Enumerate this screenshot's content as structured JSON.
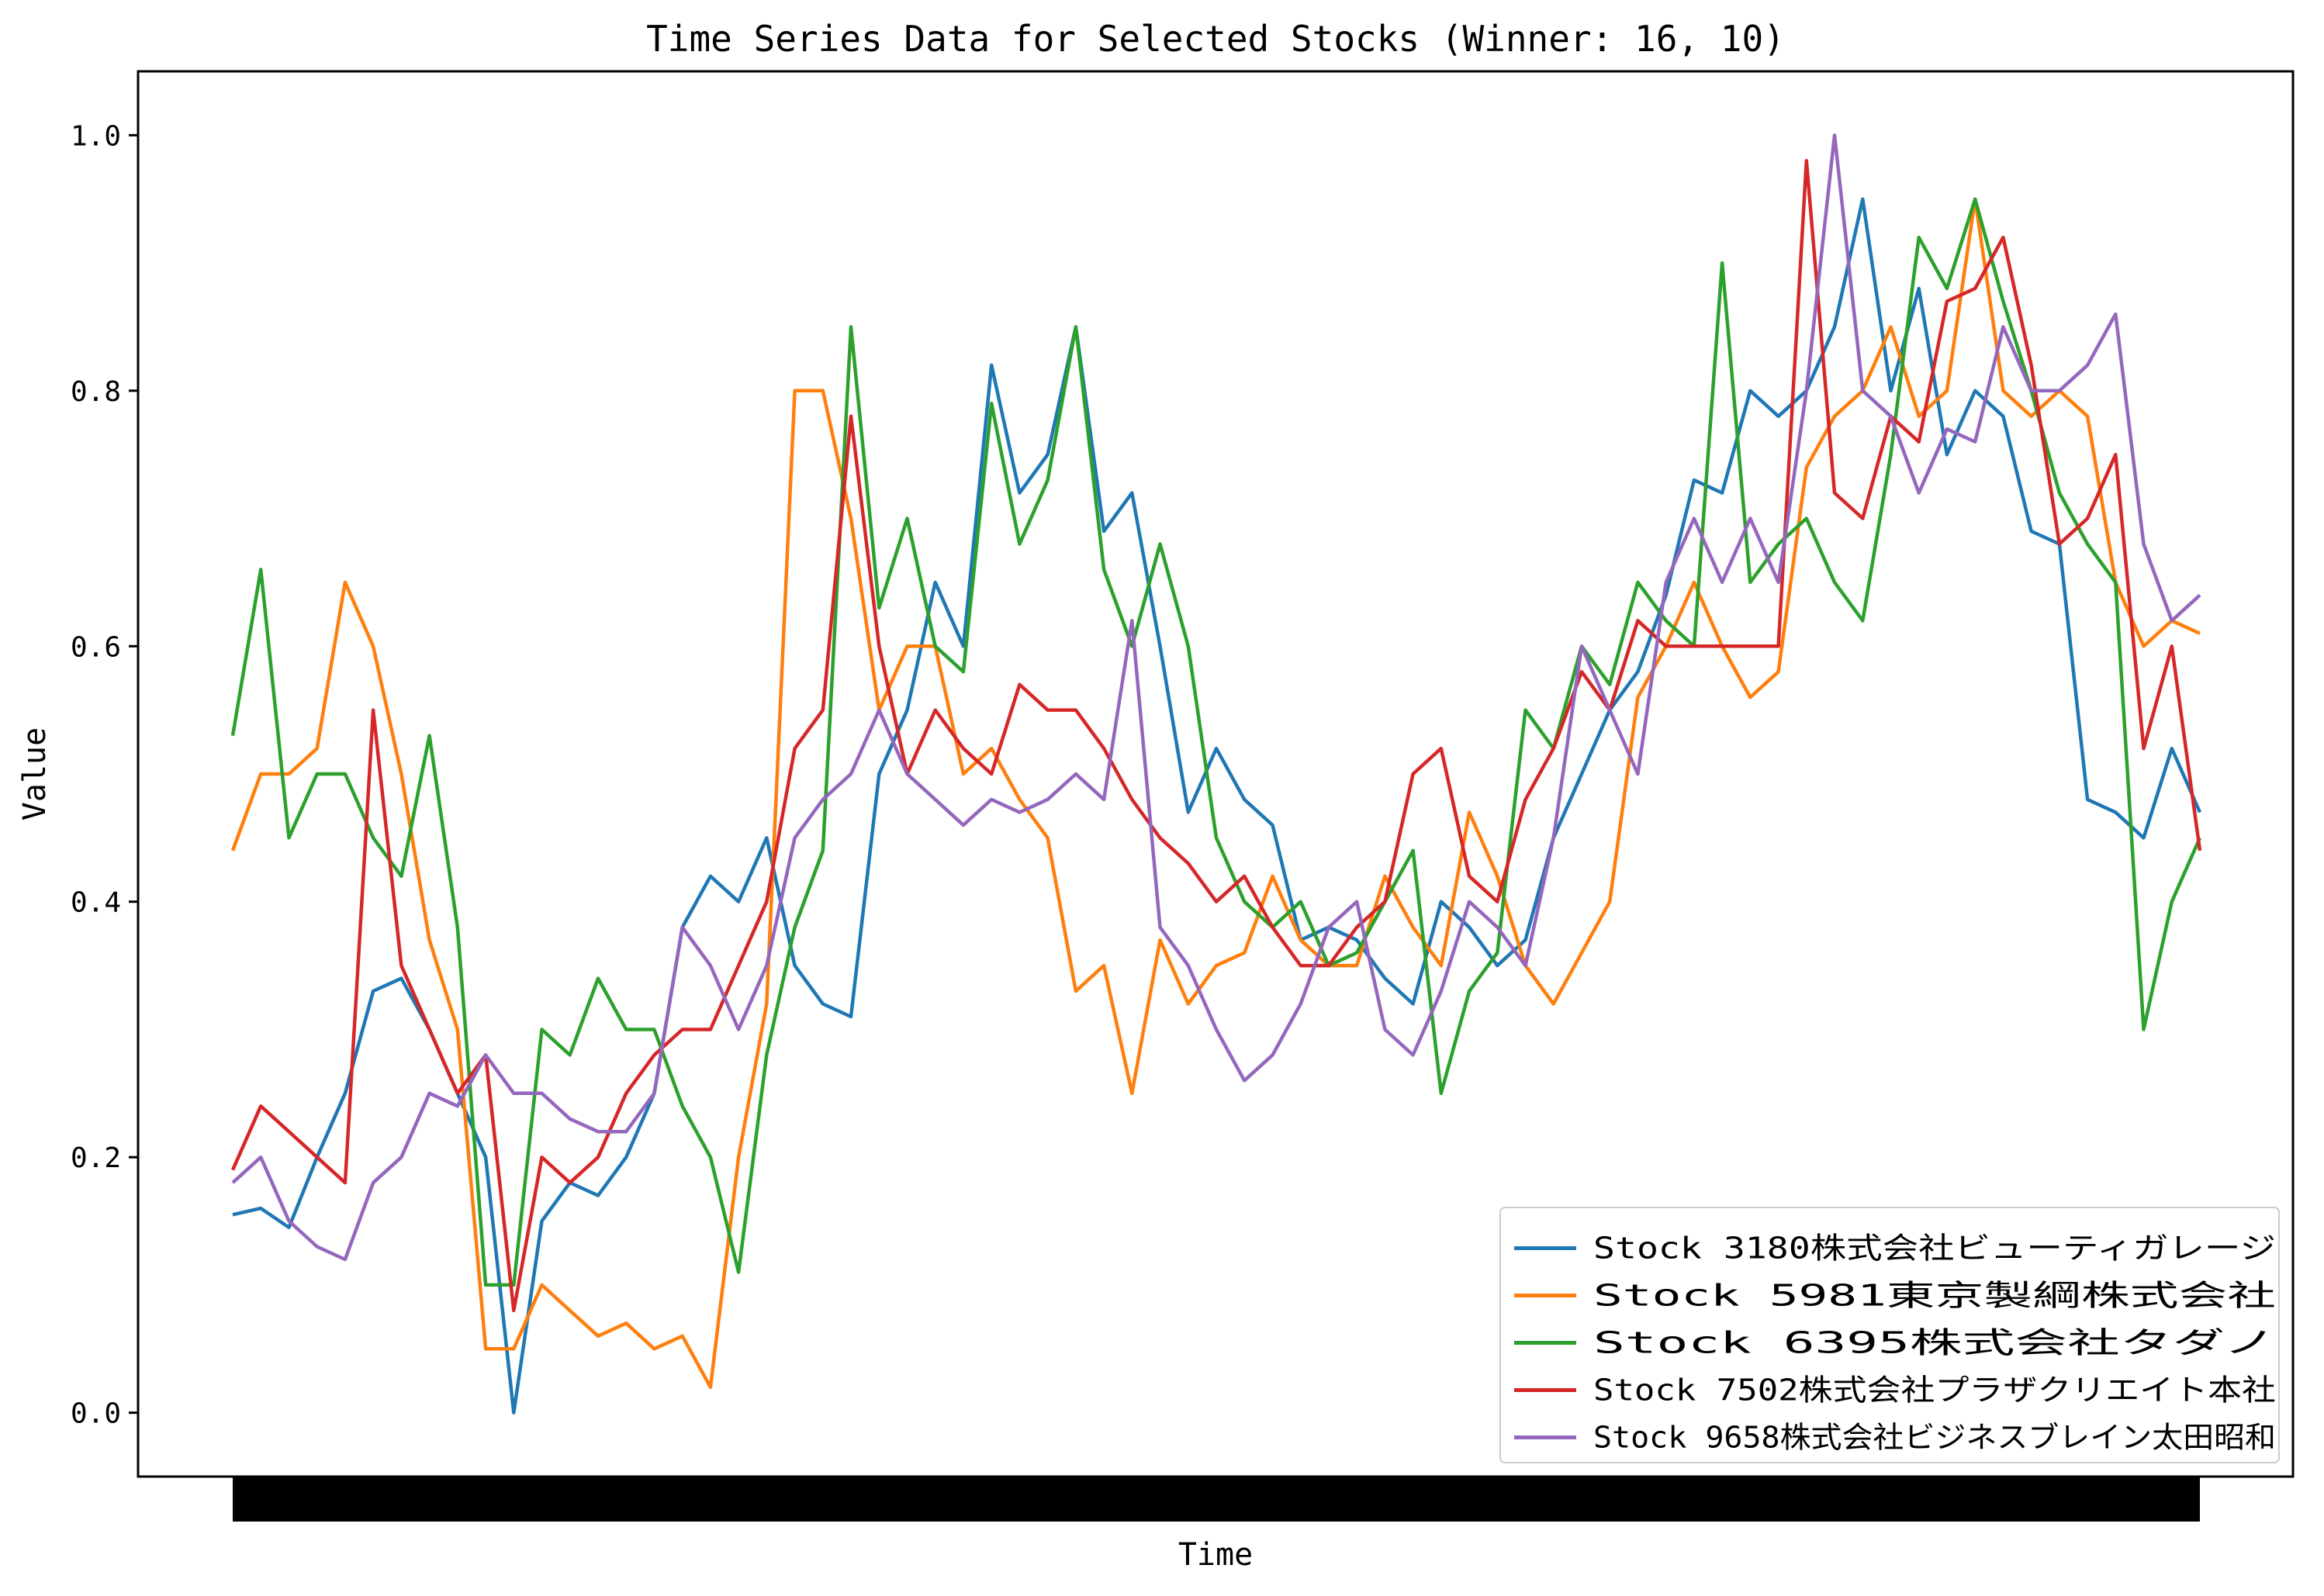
{
  "chart_data": {
    "type": "line",
    "title": "Time Series Data for Selected Stocks (Winner: 16, 10)",
    "xlabel": "Time",
    "ylabel": "Value",
    "ylim": [
      -0.05,
      1.05
    ],
    "yticks": [
      0.0,
      0.2,
      0.4,
      0.6,
      0.8,
      1.0
    ],
    "ytick_labels": [
      "0.0",
      "0.2",
      "0.4",
      "0.6",
      "0.8",
      "1.0"
    ],
    "x_tick_note": "dense overlapping tick labels rendered as a solid black band",
    "grid": false,
    "legend": "bottom-right",
    "x": [
      0,
      24,
      48,
      72,
      96,
      120,
      144,
      168,
      192,
      216,
      240,
      264,
      288,
      312,
      336,
      360,
      384,
      408,
      432,
      456,
      480,
      504,
      528,
      552,
      576,
      600,
      624,
      648,
      672,
      696,
      720,
      744,
      768,
      792,
      816,
      840,
      864,
      888,
      912,
      936,
      960,
      984,
      1008,
      1032,
      1056,
      1080,
      1104,
      1128,
      1152,
      1176,
      1200,
      1224,
      1248,
      1272,
      1296,
      1320,
      1344,
      1368,
      1392,
      1416,
      1440,
      1464,
      1488,
      1512,
      1536,
      1560,
      1584,
      1608,
      1632,
      1656,
      1680
    ],
    "series": [
      {
        "name": "Stock 3180株式会社ビューティガレージ",
        "color": "#1f77b4",
        "values": [
          0.155,
          0.16,
          0.145,
          0.2,
          0.25,
          0.33,
          0.34,
          0.3,
          0.25,
          0.2,
          0.0,
          0.15,
          0.18,
          0.17,
          0.2,
          0.25,
          0.38,
          0.42,
          0.4,
          0.45,
          0.35,
          0.32,
          0.31,
          0.5,
          0.55,
          0.65,
          0.6,
          0.82,
          0.72,
          0.75,
          0.85,
          0.69,
          0.72,
          0.6,
          0.47,
          0.52,
          0.48,
          0.46,
          0.37,
          0.38,
          0.37,
          0.34,
          0.32,
          0.4,
          0.38,
          0.35,
          0.37,
          0.45,
          0.5,
          0.55,
          0.58,
          0.64,
          0.73,
          0.72,
          0.8,
          0.78,
          0.8,
          0.85,
          0.95,
          0.8,
          0.88,
          0.75,
          0.8,
          0.78,
          0.69,
          0.68,
          0.48,
          0.47,
          0.45,
          0.52,
          0.47
        ]
      },
      {
        "name": "Stock 5981東京製綱株式会社",
        "color": "#ff7f0e",
        "values": [
          0.44,
          0.5,
          0.5,
          0.52,
          0.65,
          0.6,
          0.5,
          0.37,
          0.3,
          0.05,
          0.05,
          0.1,
          0.08,
          0.06,
          0.07,
          0.05,
          0.06,
          0.02,
          0.2,
          0.32,
          0.8,
          0.8,
          0.7,
          0.55,
          0.6,
          0.6,
          0.5,
          0.52,
          0.48,
          0.45,
          0.33,
          0.35,
          0.25,
          0.37,
          0.32,
          0.35,
          0.36,
          0.42,
          0.37,
          0.35,
          0.35,
          0.42,
          0.38,
          0.35,
          0.47,
          0.42,
          0.35,
          0.32,
          0.36,
          0.4,
          0.56,
          0.6,
          0.65,
          0.6,
          0.56,
          0.58,
          0.74,
          0.78,
          0.8,
          0.85,
          0.78,
          0.8,
          0.95,
          0.8,
          0.78,
          0.8,
          0.78,
          0.65,
          0.6,
          0.62,
          0.61
        ]
      },
      {
        "name": "Stock 6395株式会社タダノ",
        "color": "#2ca02c",
        "values": [
          0.53,
          0.66,
          0.45,
          0.5,
          0.5,
          0.45,
          0.42,
          0.53,
          0.38,
          0.1,
          0.1,
          0.3,
          0.28,
          0.34,
          0.3,
          0.3,
          0.24,
          0.2,
          0.11,
          0.28,
          0.38,
          0.44,
          0.85,
          0.63,
          0.7,
          0.6,
          0.58,
          0.79,
          0.68,
          0.73,
          0.85,
          0.66,
          0.6,
          0.68,
          0.6,
          0.45,
          0.4,
          0.38,
          0.4,
          0.35,
          0.36,
          0.4,
          0.44,
          0.25,
          0.33,
          0.36,
          0.55,
          0.52,
          0.6,
          0.57,
          0.65,
          0.62,
          0.6,
          0.9,
          0.65,
          0.68,
          0.7,
          0.65,
          0.62,
          0.75,
          0.92,
          0.88,
          0.95,
          0.87,
          0.8,
          0.72,
          0.68,
          0.65,
          0.3,
          0.4,
          0.45
        ]
      },
      {
        "name": "Stock 7502株式会社プラザクリエイト本社",
        "color": "#d62728",
        "values": [
          0.19,
          0.24,
          0.22,
          0.2,
          0.18,
          0.55,
          0.35,
          0.3,
          0.25,
          0.28,
          0.08,
          0.2,
          0.18,
          0.2,
          0.25,
          0.28,
          0.3,
          0.3,
          0.35,
          0.4,
          0.52,
          0.55,
          0.78,
          0.6,
          0.5,
          0.55,
          0.52,
          0.5,
          0.57,
          0.55,
          0.55,
          0.52,
          0.48,
          0.45,
          0.43,
          0.4,
          0.42,
          0.38,
          0.35,
          0.35,
          0.38,
          0.4,
          0.5,
          0.52,
          0.42,
          0.4,
          0.48,
          0.52,
          0.58,
          0.55,
          0.62,
          0.6,
          0.6,
          0.6,
          0.6,
          0.6,
          0.98,
          0.72,
          0.7,
          0.78,
          0.76,
          0.87,
          0.88,
          0.92,
          0.82,
          0.68,
          0.7,
          0.75,
          0.52,
          0.6,
          0.44
        ]
      },
      {
        "name": "Stock 9658株式会社ビジネスブレイン太田昭和",
        "color": "#9467bd",
        "values": [
          0.18,
          0.2,
          0.15,
          0.13,
          0.12,
          0.18,
          0.2,
          0.25,
          0.24,
          0.28,
          0.25,
          0.25,
          0.23,
          0.22,
          0.22,
          0.25,
          0.38,
          0.35,
          0.3,
          0.35,
          0.45,
          0.48,
          0.5,
          0.55,
          0.5,
          0.48,
          0.46,
          0.48,
          0.47,
          0.48,
          0.5,
          0.48,
          0.62,
          0.38,
          0.35,
          0.3,
          0.26,
          0.28,
          0.32,
          0.38,
          0.4,
          0.3,
          0.28,
          0.33,
          0.4,
          0.38,
          0.35,
          0.45,
          0.6,
          0.55,
          0.5,
          0.65,
          0.7,
          0.65,
          0.7,
          0.65,
          0.8,
          1.0,
          0.8,
          0.78,
          0.72,
          0.77,
          0.76,
          0.85,
          0.8,
          0.8,
          0.82,
          0.86,
          0.68,
          0.62,
          0.64
        ]
      }
    ]
  }
}
